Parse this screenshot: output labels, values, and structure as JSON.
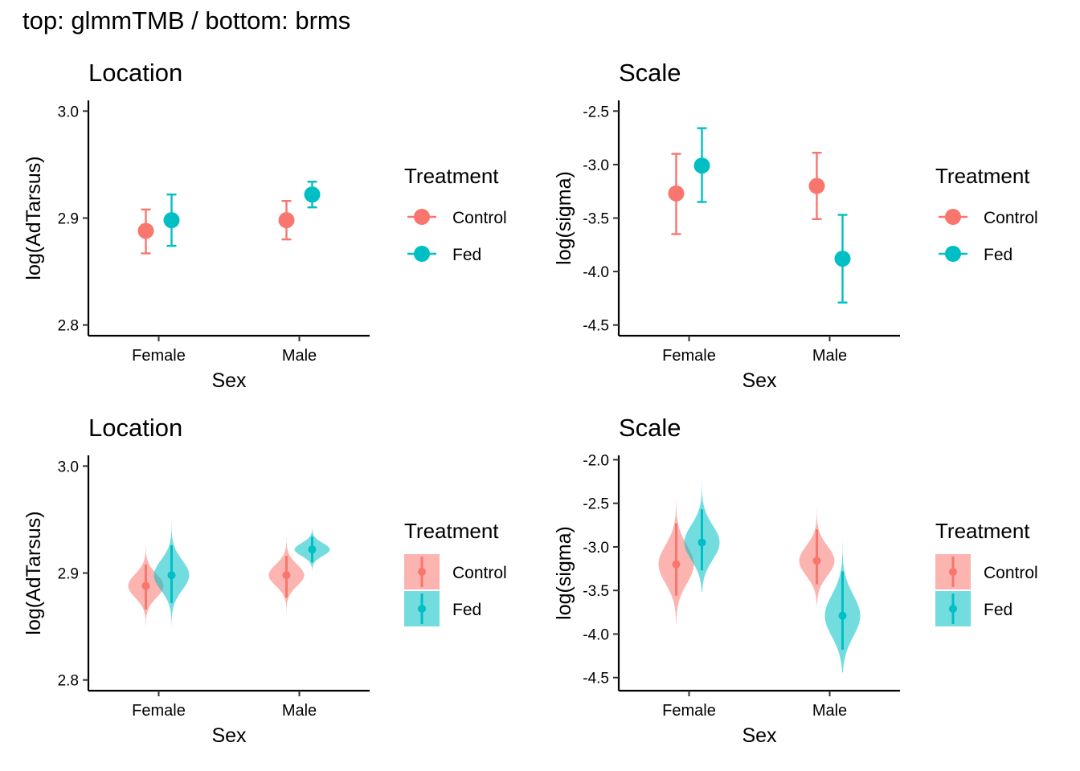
{
  "figure": {
    "title": "top: glmmTMB / bottom: brms"
  },
  "colors": {
    "Control": "#F8766D",
    "Fed": "#00BFC4"
  },
  "chart_data": [
    {
      "type": "scatter",
      "style": "pointrange",
      "title": "Location",
      "xlabel": "Sex",
      "ylabel": "log(AdTarsus)",
      "categories": [
        "Female",
        "Male"
      ],
      "ylim": [
        2.79,
        3.01
      ],
      "yticks": [
        "2.8",
        "2.9",
        "3.0"
      ],
      "legend": {
        "title": "Treatment",
        "position": "right",
        "entries": [
          "Control",
          "Fed"
        ]
      },
      "series": [
        {
          "name": "Control",
          "values": [
            2.888,
            2.898
          ],
          "lower": [
            2.867,
            2.88
          ],
          "upper": [
            2.908,
            2.916
          ]
        },
        {
          "name": "Fed",
          "values": [
            2.898,
            2.922
          ],
          "lower": [
            2.874,
            2.91
          ],
          "upper": [
            2.922,
            2.934
          ]
        }
      ]
    },
    {
      "type": "scatter",
      "style": "pointrange",
      "title": "Scale",
      "xlabel": "Sex",
      "ylabel": "log(sigma)",
      "categories": [
        "Female",
        "Male"
      ],
      "ylim": [
        -4.6,
        -2.4
      ],
      "yticks": [
        "-4.5",
        "-4.0",
        "-3.5",
        "-3.0",
        "-2.5"
      ],
      "legend": {
        "title": "Treatment",
        "position": "right",
        "entries": [
          "Control",
          "Fed"
        ]
      },
      "series": [
        {
          "name": "Control",
          "values": [
            -3.27,
            -3.2
          ],
          "lower": [
            -3.65,
            -3.51
          ],
          "upper": [
            -2.9,
            -2.89
          ]
        },
        {
          "name": "Fed",
          "values": [
            -3.01,
            -3.88
          ],
          "lower": [
            -3.35,
            -4.29
          ],
          "upper": [
            -2.66,
            -3.47
          ]
        }
      ]
    },
    {
      "type": "scatter",
      "style": "violin-pointrange",
      "title": "Location",
      "xlabel": "Sex",
      "ylabel": "log(AdTarsus)",
      "categories": [
        "Female",
        "Male"
      ],
      "ylim": [
        2.79,
        3.01
      ],
      "yticks": [
        "2.8",
        "2.9",
        "3.0"
      ],
      "legend": {
        "title": "Treatment",
        "position": "right",
        "entries": [
          "Control",
          "Fed"
        ]
      },
      "series": [
        {
          "name": "Control",
          "values": [
            2.888,
            2.898
          ],
          "lower": [
            2.866,
            2.877
          ],
          "upper": [
            2.908,
            2.916
          ],
          "min": [
            2.843,
            2.861
          ],
          "max": [
            2.938,
            2.936
          ],
          "spread": [
            0.011,
            0.01
          ]
        },
        {
          "name": "Fed",
          "values": [
            2.898,
            2.922
          ],
          "lower": [
            2.872,
            2.91
          ],
          "upper": [
            2.926,
            2.934
          ],
          "min": [
            2.845,
            2.889
          ],
          "max": [
            2.953,
            2.958
          ],
          "spread": [
            0.014,
            0.006
          ]
        }
      ]
    },
    {
      "type": "scatter",
      "style": "violin-pointrange",
      "title": "Scale",
      "xlabel": "Sex",
      "ylabel": "log(sigma)",
      "categories": [
        "Female",
        "Male"
      ],
      "ylim": [
        -4.65,
        -1.95
      ],
      "yticks": [
        "-4.5",
        "-4.0",
        "-3.5",
        "-3.0",
        "-2.5",
        "-2.0"
      ],
      "legend": {
        "title": "Treatment",
        "position": "right",
        "entries": [
          "Control",
          "Fed"
        ]
      },
      "series": [
        {
          "name": "Control",
          "values": [
            -3.2,
            -3.16
          ],
          "lower": [
            -3.56,
            -3.43
          ],
          "upper": [
            -2.73,
            -2.8
          ],
          "min": [
            -3.88,
            -3.66
          ],
          "max": [
            -2.17,
            -2.44
          ],
          "spread": [
            0.22,
            0.17
          ]
        },
        {
          "name": "Fed",
          "values": [
            -2.95,
            -3.79
          ],
          "lower": [
            -3.27,
            -4.18
          ],
          "upper": [
            -2.57,
            -3.28
          ],
          "min": [
            -3.52,
            -4.44
          ],
          "max": [
            -2.14,
            -2.51
          ],
          "spread": [
            0.2,
            0.24
          ]
        }
      ]
    }
  ]
}
